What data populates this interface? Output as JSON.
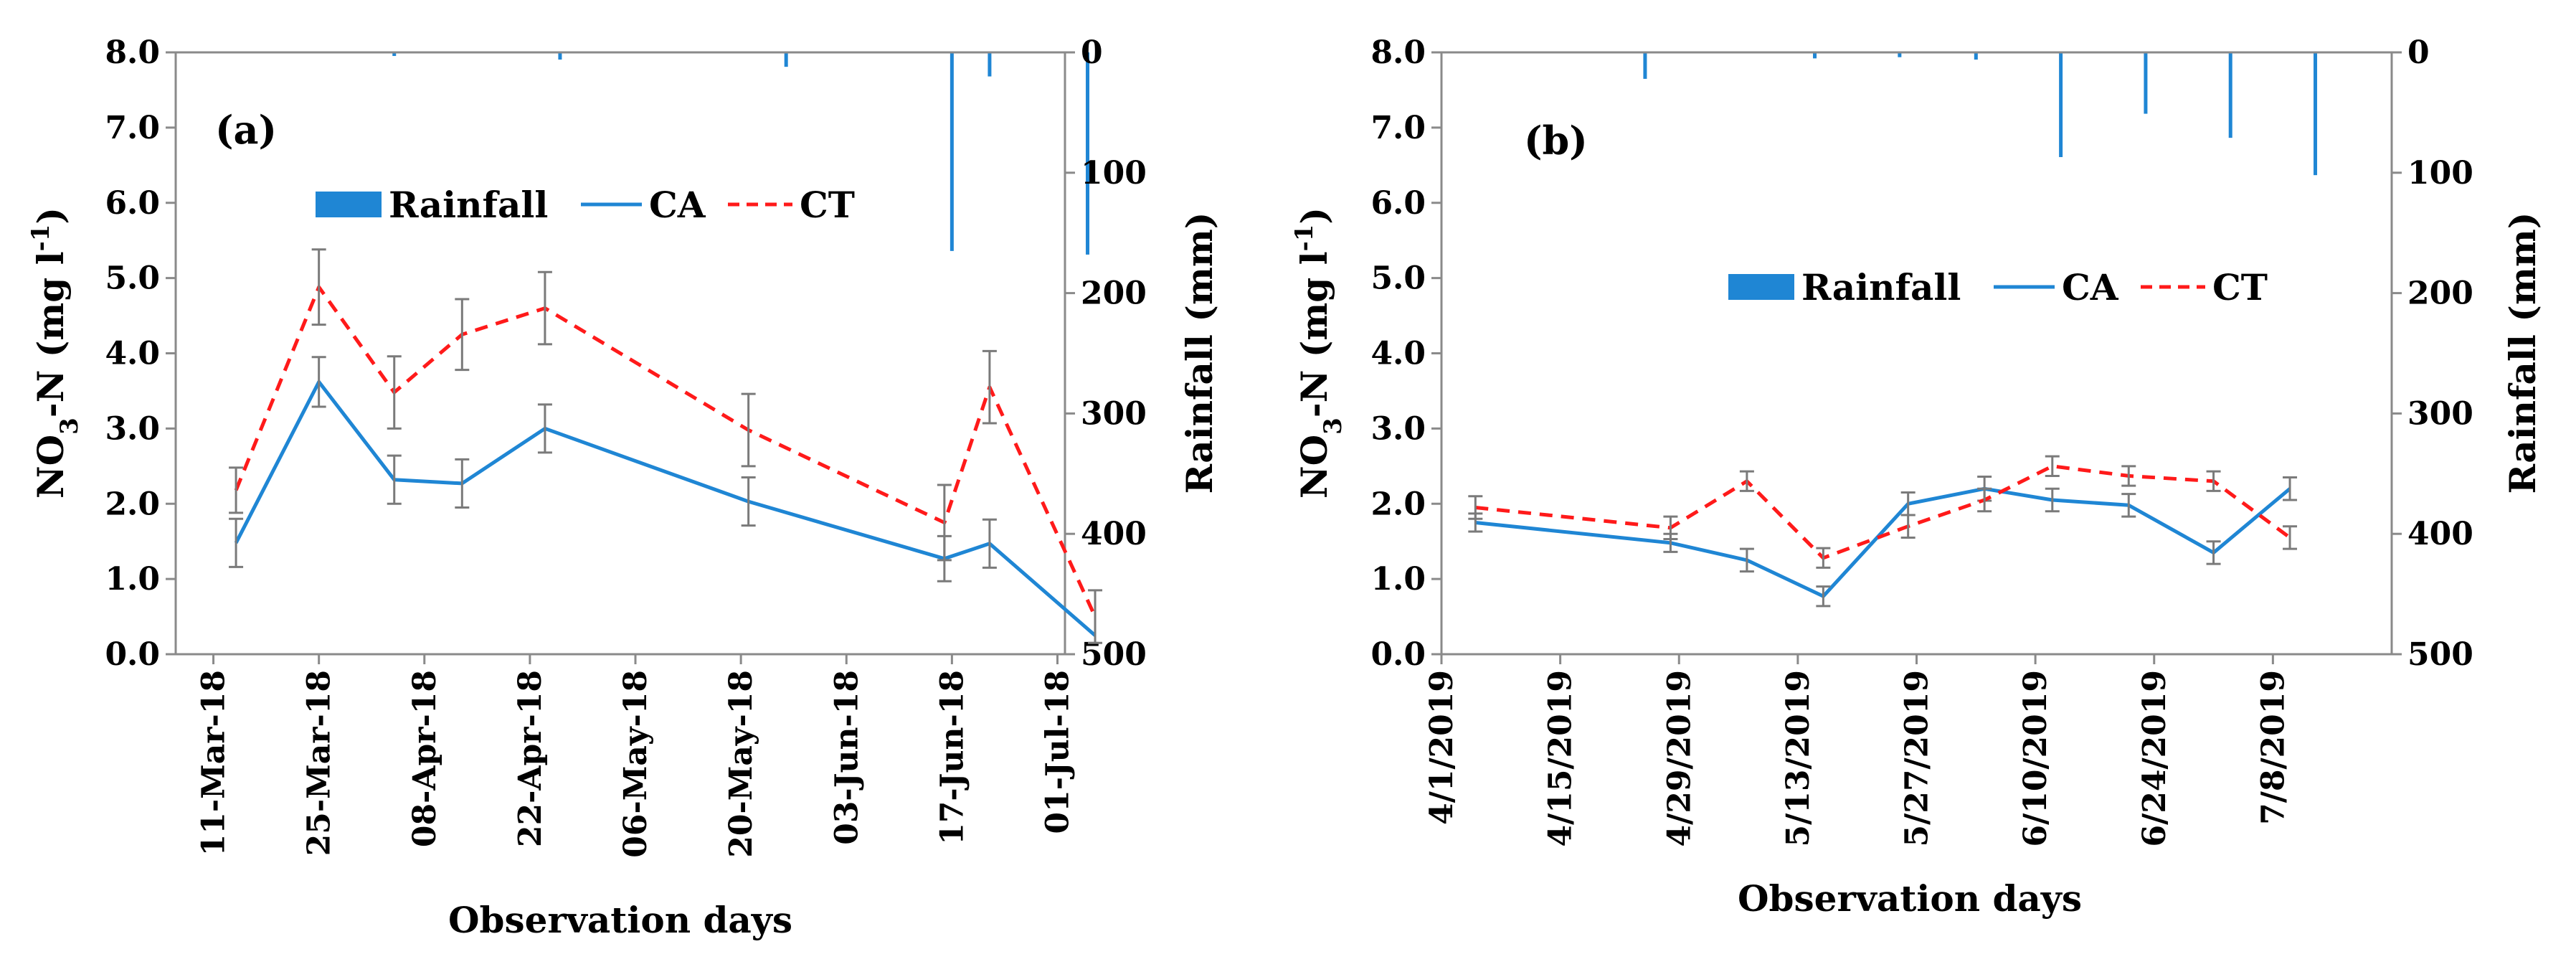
{
  "chart_data": [
    {
      "type": "line",
      "panel_label": "(a)",
      "title": "",
      "xlabel": "Observation days",
      "ylabel": "NO3-N (mg l-1)",
      "ylabel_parts": {
        "base": "NO",
        "sub": "3",
        "mid": "-N  (mg l",
        "sup": "-1",
        "end": ")"
      },
      "y2label": "Rainfall (mm)",
      "ylim": [
        0,
        8
      ],
      "y2lim": [
        0,
        500
      ],
      "y2_inverted": true,
      "yticks": [
        0,
        1,
        2,
        3,
        4,
        5,
        6,
        7,
        8
      ],
      "ytick_labels": [
        "0.0",
        "1.0",
        "2.0",
        "3.0",
        "4.0",
        "5.0",
        "6.0",
        "7.0",
        "8.0"
      ],
      "y2ticks": [
        0,
        100,
        200,
        300,
        400,
        500
      ],
      "y2tick_labels": [
        "0",
        "100",
        "200",
        "300",
        "400",
        "500"
      ],
      "xlim": [
        -5,
        113
      ],
      "xticks": [
        0,
        14,
        28,
        42,
        56,
        70,
        84,
        98,
        112
      ],
      "xtick_labels": [
        "11-Mar-18",
        "25-Mar-18",
        "08-Apr-18",
        "22-Apr-18",
        "06-May-18",
        "20-May-18",
        "03-Jun-18",
        "17-Jun-18",
        "01-Jul-18"
      ],
      "legend_position": "upper-center",
      "legend": [
        "Rainfall",
        "CA",
        "CT"
      ],
      "series": [
        {
          "name": "CA",
          "color": "#1f86d4",
          "dash": "solid",
          "x": [
            3,
            14,
            24,
            33,
            44,
            71,
            97,
            103,
            117
          ],
          "values": [
            1.48,
            3.62,
            2.32,
            2.27,
            3.0,
            2.03,
            1.27,
            1.47,
            0.25
          ],
          "errors": [
            0.32,
            0.33,
            0.32,
            0.32,
            0.32,
            0.32,
            0.3,
            0.32,
            0.0
          ]
        },
        {
          "name": "CT",
          "color": "#ff1a1a",
          "dash": "dashed",
          "x": [
            3,
            14,
            24,
            33,
            44,
            71,
            97,
            103,
            117
          ],
          "values": [
            2.18,
            4.88,
            3.48,
            4.25,
            4.6,
            2.98,
            1.75,
            3.55,
            0.5
          ],
          "errors": [
            0.3,
            0.5,
            0.48,
            0.47,
            0.48,
            0.48,
            0.5,
            0.48,
            0.35
          ]
        }
      ],
      "rainfall": {
        "name": "Rainfall",
        "color": "#1f86d4",
        "x": [
          24,
          46,
          76,
          98,
          103,
          116
        ],
        "values": [
          3,
          6,
          12,
          165,
          20,
          168
        ]
      }
    },
    {
      "type": "line",
      "panel_label": "(b)",
      "title": "",
      "xlabel": "Observation days",
      "ylabel": "NO3-N (mg l-1)",
      "ylabel_parts": {
        "base": "NO",
        "sub": "3",
        "mid": "-N  (mg l",
        "sup": "-1",
        "end": ")"
      },
      "y2label": "Rainfall (mm)",
      "ylim": [
        0,
        8
      ],
      "y2lim": [
        0,
        500
      ],
      "y2_inverted": true,
      "yticks": [
        0,
        1,
        2,
        3,
        4,
        5,
        6,
        7,
        8
      ],
      "ytick_labels": [
        "0.0",
        "1.0",
        "2.0",
        "3.0",
        "4.0",
        "5.0",
        "6.0",
        "7.0",
        "8.0"
      ],
      "y2ticks": [
        0,
        100,
        200,
        300,
        400,
        500
      ],
      "y2tick_labels": [
        "0",
        "100",
        "200",
        "300",
        "400",
        "500"
      ],
      "xlim": [
        0,
        112
      ],
      "xticks": [
        0,
        14,
        28,
        42,
        56,
        70,
        84,
        98
      ],
      "xtick_labels": [
        "4/1/2019",
        "4/15/2019",
        "4/29/2019",
        "5/13/2019",
        "5/27/2019",
        "6/10/2019",
        "6/24/2019",
        "7/8/2019"
      ],
      "legend_position": "center",
      "legend": [
        "Rainfall",
        "CA",
        "CT"
      ],
      "series": [
        {
          "name": "CA",
          "color": "#1f86d4",
          "dash": "solid",
          "x": [
            4,
            27,
            36,
            45,
            55,
            64,
            72,
            81,
            91,
            100
          ],
          "values": [
            1.75,
            1.48,
            1.25,
            0.77,
            2.0,
            2.2,
            2.05,
            1.98,
            1.35,
            2.2
          ],
          "errors": [
            0.12,
            0.12,
            0.15,
            0.13,
            0.15,
            0.16,
            0.15,
            0.15,
            0.15,
            0.15
          ]
        },
        {
          "name": "CT",
          "color": "#ff1a1a",
          "dash": "dashed",
          "x": [
            4,
            27,
            36,
            45,
            55,
            64,
            72,
            81,
            91,
            100
          ],
          "values": [
            1.95,
            1.68,
            2.3,
            1.28,
            1.7,
            2.05,
            2.5,
            2.37,
            2.3,
            1.55
          ],
          "errors": [
            0.15,
            0.15,
            0.13,
            0.13,
            0.15,
            0.15,
            0.13,
            0.13,
            0.13,
            0.15
          ]
        }
      ],
      "rainfall": {
        "name": "Rainfall",
        "color": "#1f86d4",
        "x": [
          24,
          44,
          54,
          63,
          73,
          83,
          93,
          103
        ],
        "values": [
          22,
          5,
          4,
          6,
          87,
          51,
          71,
          102
        ]
      }
    }
  ]
}
